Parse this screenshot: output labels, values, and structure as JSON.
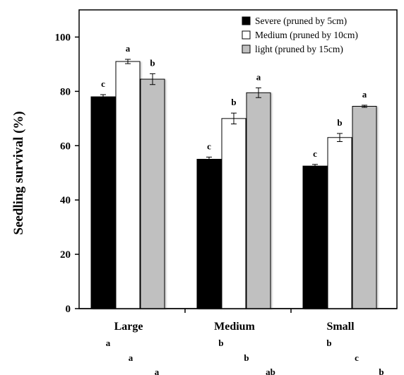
{
  "chart_data": {
    "type": "bar",
    "ylabel": "Seedling survival  (%)",
    "xlabel": "",
    "ylim": [
      0,
      110
    ],
    "yticks": [
      0,
      20,
      40,
      60,
      80,
      100
    ],
    "categories": [
      "Large",
      "Medium",
      "Small"
    ],
    "legend_position": "top-right",
    "grid": false,
    "series": [
      {
        "name": "Severe (pruned by 5cm)",
        "color": "#000000",
        "values": [
          78,
          55,
          52.5
        ],
        "errors": [
          0.8,
          0.8,
          0.6
        ],
        "labels": [
          "c",
          "c",
          "c"
        ]
      },
      {
        "name": "Medium (pruned by 10cm)",
        "color": "#ffffff",
        "values": [
          91,
          70,
          63
        ],
        "errors": [
          0.8,
          2.0,
          1.5
        ],
        "labels": [
          "a",
          "b",
          "b"
        ]
      },
      {
        "name": "light (pruned by 15cm)",
        "color": "#c0c0c0",
        "values": [
          84.5,
          79.5,
          74.5
        ],
        "errors": [
          2.0,
          1.8,
          0.4
        ],
        "labels": [
          "b",
          "a",
          "a"
        ]
      }
    ],
    "category_letters": [
      [
        "a",
        "a",
        "a"
      ],
      [
        "b",
        "b",
        "ab"
      ],
      [
        "b",
        "c",
        "b"
      ]
    ]
  }
}
